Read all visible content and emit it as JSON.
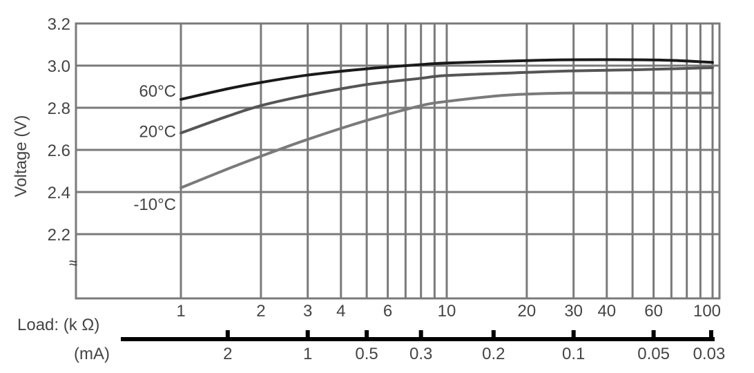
{
  "chart_data": {
    "type": "line",
    "title": "",
    "xlabel": "Load: (k Ω)",
    "x2label": "(mA)",
    "ylabel": "Voltage (V)",
    "xscale": "log",
    "xlim": [
      1,
      100
    ],
    "ylim": [
      2.0,
      3.2
    ],
    "grid": true,
    "y_axis_break": "≈",
    "y_ticks": [
      2.2,
      2.4,
      2.6,
      2.8,
      3.0,
      3.2
    ],
    "y_tick_labels": [
      "2.2",
      "2.4",
      "2.6",
      "2.8",
      "3.0",
      "3.2"
    ],
    "x_ticks": [
      1,
      2,
      3,
      4,
      6,
      10,
      20,
      30,
      40,
      60,
      100
    ],
    "x_tick_labels": [
      "1",
      "2",
      "3",
      "4",
      "6",
      "10",
      "20",
      "30",
      "40",
      "60",
      "100"
    ],
    "x_gridlines": [
      1,
      2,
      3,
      4,
      5,
      6,
      7,
      8,
      9,
      10,
      20,
      30,
      40,
      50,
      60,
      70,
      80,
      90,
      100
    ],
    "secondary_axis": {
      "ticks": [
        {
          "label": "2",
          "load_kohm": 1.5
        },
        {
          "label": "1",
          "load_kohm": 3
        },
        {
          "label": "0.5",
          "load_kohm": 5
        },
        {
          "label": "0.3",
          "load_kohm": 8
        },
        {
          "label": "0.2",
          "load_kohm": 15
        },
        {
          "label": "0.1",
          "load_kohm": 30
        },
        {
          "label": "0.05",
          "load_kohm": 60
        },
        {
          "label": "0.03",
          "load_kohm": 100
        }
      ]
    },
    "series": [
      {
        "name": "60°C",
        "color": "#1a1a1a",
        "x": [
          1,
          1.5,
          2,
          3,
          5,
          8,
          10,
          20,
          30,
          50,
          70,
          100
        ],
        "y": [
          2.84,
          2.89,
          2.92,
          2.955,
          2.985,
          3.005,
          3.012,
          3.024,
          3.028,
          3.028,
          3.025,
          3.015
        ]
      },
      {
        "name": "20°C",
        "color": "#555555",
        "x": [
          1,
          1.5,
          2,
          3,
          5,
          8,
          10,
          20,
          30,
          50,
          70,
          100
        ],
        "y": [
          2.68,
          2.76,
          2.81,
          2.86,
          2.91,
          2.94,
          2.953,
          2.968,
          2.975,
          2.98,
          2.985,
          2.99
        ]
      },
      {
        "name": "-10°C",
        "color": "#7a7a7a",
        "x": [
          1,
          1.5,
          2,
          3,
          5,
          8,
          10,
          15,
          20,
          30,
          50,
          100
        ],
        "y": [
          2.42,
          2.51,
          2.57,
          2.65,
          2.74,
          2.81,
          2.83,
          2.855,
          2.865,
          2.87,
          2.87,
          2.87
        ]
      }
    ]
  }
}
